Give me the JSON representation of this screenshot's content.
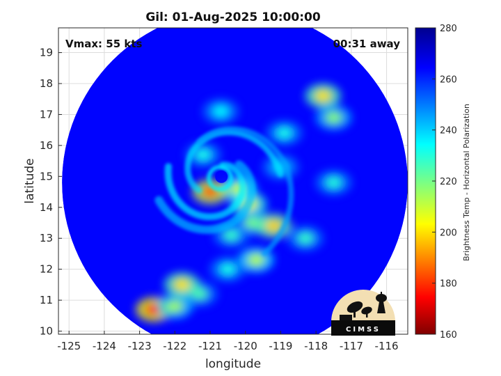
{
  "title": "Gil: 01-Aug-2025 10:00:00",
  "annotations": {
    "vmax": "Vmax: 55 kts",
    "eta": "00:31 away"
  },
  "logo_text": "CIMSS",
  "chart_data": {
    "type": "heatmap",
    "title": "Gil: 01-Aug-2025 10:00:00",
    "xlabel": "longitude",
    "ylabel": "latitude",
    "xlim": [
      -125.3,
      -115.4
    ],
    "ylim": [
      9.9,
      19.8
    ],
    "x_ticks": [
      -125,
      -124,
      -123,
      -122,
      -121,
      -120,
      -119,
      -118,
      -117,
      -116
    ],
    "y_ticks": [
      10,
      11,
      12,
      13,
      14,
      15,
      16,
      17,
      18,
      19
    ],
    "grid": true,
    "colormap": "jet",
    "colorbar": {
      "label": "Brightness Temp - Horizontal Polarization",
      "min": 160,
      "max": 280,
      "ticks": [
        160,
        180,
        200,
        220,
        240,
        260,
        280
      ]
    },
    "swath": {
      "center_lon": -120.3,
      "center_lat": 14.8,
      "radius_deg": 4.9
    },
    "storm_center": {
      "lon": -120.8,
      "lat": 14.9
    },
    "background_tb": 264,
    "features": [
      {
        "lon": -119.9,
        "lat": 14.1,
        "tb": 205
      },
      {
        "lon": -120.2,
        "lat": 14.6,
        "tb": 210
      },
      {
        "lon": -119.8,
        "lat": 13.5,
        "tb": 220
      },
      {
        "lon": -119.2,
        "lat": 13.4,
        "tb": 198
      },
      {
        "lon": -120.4,
        "lat": 13.1,
        "tb": 228
      },
      {
        "lon": -121.0,
        "lat": 14.5,
        "tb": 185
      },
      {
        "lon": -119.7,
        "lat": 12.3,
        "tb": 212
      },
      {
        "lon": -120.5,
        "lat": 12.0,
        "tb": 232
      },
      {
        "lon": -121.3,
        "lat": 11.2,
        "tb": 225
      },
      {
        "lon": -122.6,
        "lat": 10.7,
        "tb": 178
      },
      {
        "lon": -122.0,
        "lat": 10.8,
        "tb": 215
      },
      {
        "lon": -121.8,
        "lat": 11.5,
        "tb": 200
      },
      {
        "lon": -117.8,
        "lat": 17.6,
        "tb": 200
      },
      {
        "lon": -117.5,
        "lat": 16.9,
        "tb": 218
      },
      {
        "lon": -118.9,
        "lat": 16.4,
        "tb": 232
      },
      {
        "lon": -120.7,
        "lat": 17.1,
        "tb": 235
      },
      {
        "lon": -121.2,
        "lat": 15.7,
        "tb": 232
      },
      {
        "lon": -119.0,
        "lat": 15.3,
        "tb": 238
      },
      {
        "lon": -117.5,
        "lat": 14.8,
        "tb": 230
      },
      {
        "lon": -118.3,
        "lat": 13.0,
        "tb": 228
      }
    ]
  }
}
